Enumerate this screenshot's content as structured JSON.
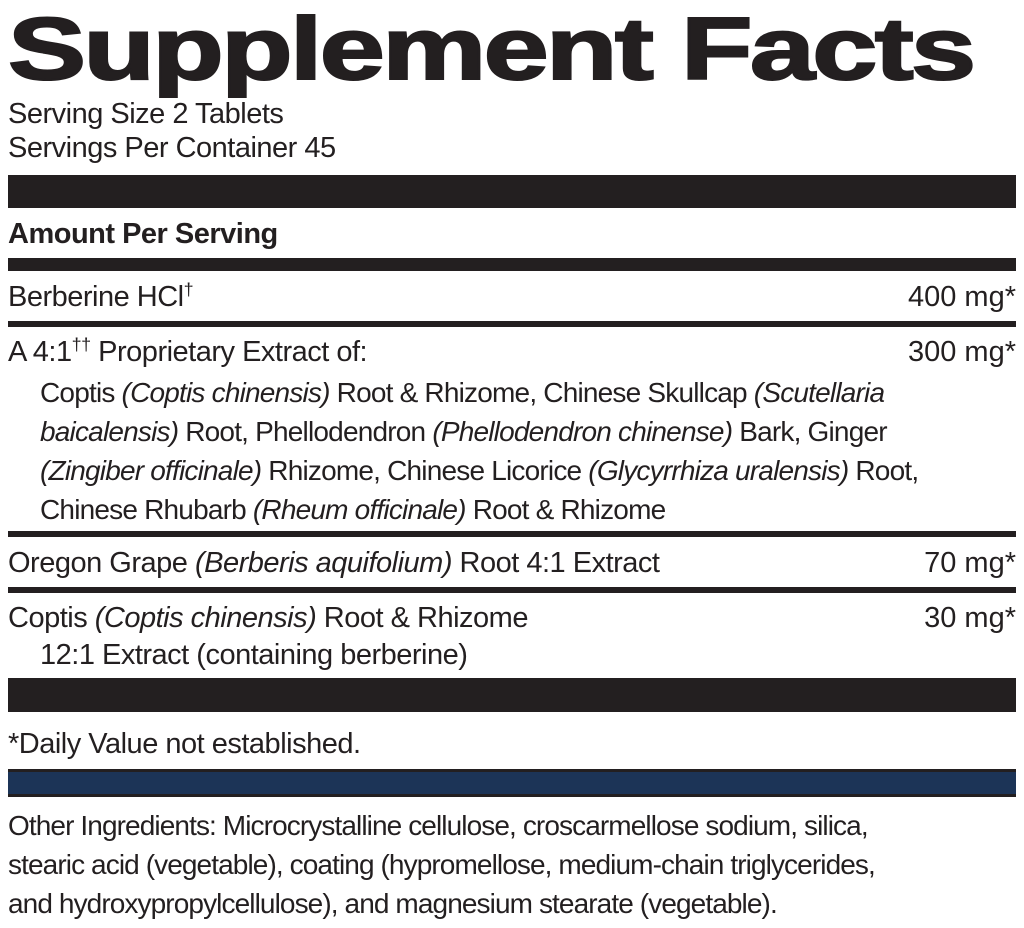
{
  "label": {
    "title": "Supplement Facts",
    "serving_size": "Serving Size 2 Tablets",
    "servings_per_container": "Servings Per Container 45",
    "amount_per_serving_header": "Amount Per Serving",
    "rows": [
      {
        "name_segments": [
          {
            "t": "Berberine HCl"
          },
          {
            "t": "†",
            "sup": true
          }
        ],
        "amount": "400 mg*"
      },
      {
        "name_segments": [
          {
            "t": "A 4:1"
          },
          {
            "t": "††",
            "sup": true
          },
          {
            "t": " Proprietary Extract of:"
          }
        ],
        "amount": "300 mg*",
        "detail_lines": [
          [
            {
              "t": "Coptis "
            },
            {
              "t": "(Coptis chinensis)",
              "i": true
            },
            {
              "t": " Root & Rhizome, Chinese Skullcap "
            },
            {
              "t": "(Scutellaria",
              "i": true
            }
          ],
          [
            {
              "t": "baicalensis)",
              "i": true
            },
            {
              "t": " Root, Phellodendron "
            },
            {
              "t": "(Phellodendron chinense)",
              "i": true
            },
            {
              "t": " Bark, Ginger"
            }
          ],
          [
            {
              "t": "(Zingiber officinale)",
              "i": true
            },
            {
              "t": " Rhizome, Chinese Licorice "
            },
            {
              "t": "(Glycyrrhiza uralensis)",
              "i": true
            },
            {
              "t": " Root,"
            }
          ],
          [
            {
              "t": "Chinese Rhubarb "
            },
            {
              "t": "(Rheum officinale)",
              "i": true
            },
            {
              "t": " Root & Rhizome"
            }
          ]
        ]
      },
      {
        "name_segments": [
          {
            "t": "Oregon Grape "
          },
          {
            "t": "(Berberis aquifolium)",
            "i": true
          },
          {
            "t": " Root 4:1 Extract"
          }
        ],
        "amount": "70 mg*"
      },
      {
        "name_segments": [
          {
            "t": "Coptis "
          },
          {
            "t": "(Coptis chinensis)",
            "i": true
          },
          {
            "t": " Root & Rhizome"
          }
        ],
        "amount": "30 mg*",
        "detail_lines": [
          [
            {
              "t": "12:1 Extract (containing berberine)"
            }
          ]
        ]
      }
    ],
    "daily_value_footnote": "*Daily Value not established.",
    "other_ingredients_lines": [
      "Other Ingredients: Microcrystalline cellulose, croscarmellose sodium, silica,",
      "stearic acid (vegetable), coating (hypromellose, medium-chain triglycerides,",
      "and hydroxypropylcellulose), and magnesium stearate (vegetable)."
    ],
    "colors": {
      "ink": "#231f20",
      "navy": "#1c3457",
      "background": "#ffffff"
    }
  }
}
